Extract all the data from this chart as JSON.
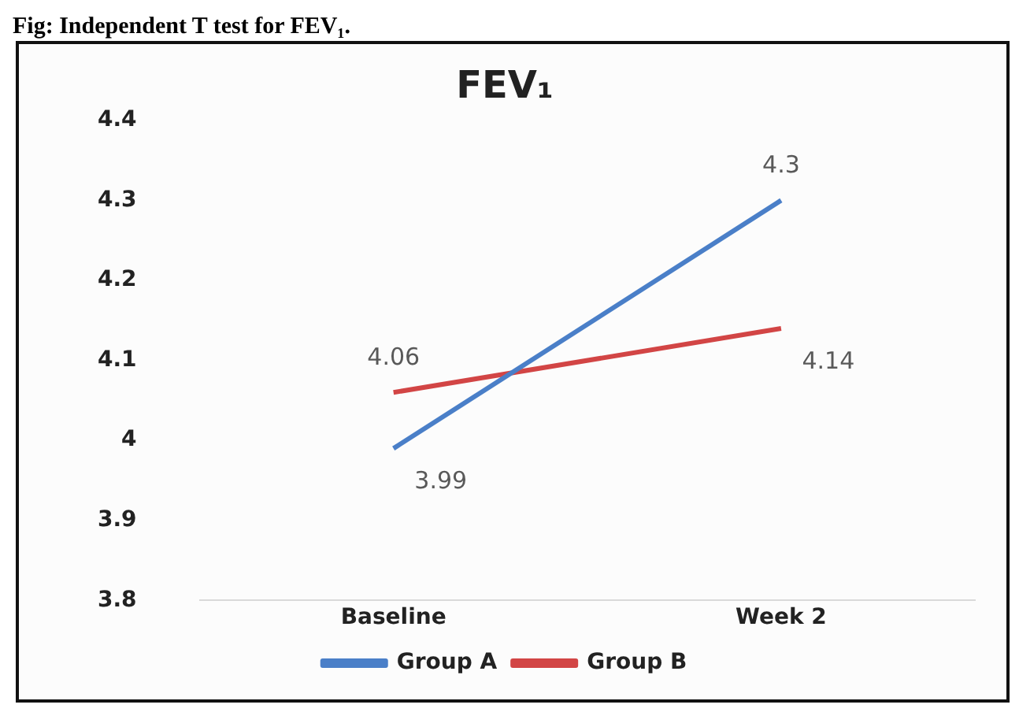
{
  "chart_data": {
    "type": "line",
    "title": "FEV₁",
    "annotations": [
      "Fig: Independent T test for FEV₁."
    ],
    "categories": [
      "Baseline",
      "Week 2"
    ],
    "series": [
      {
        "name": "Group A",
        "color": "#4a7fc8",
        "values": [
          3.99,
          4.3
        ]
      },
      {
        "name": "Group B",
        "color": "#d24545",
        "values": [
          4.06,
          4.14
        ]
      }
    ],
    "ylim": [
      3.8,
      4.4
    ],
    "yticks": [
      3.8,
      3.9,
      4,
      4.1,
      4.2,
      4.3,
      4.4
    ],
    "grid": false,
    "legend": "bottom",
    "data_labels": true,
    "marker": "none",
    "line_style": "solid"
  }
}
